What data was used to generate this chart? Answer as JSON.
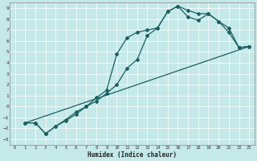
{
  "title": "",
  "xlabel": "Humidex (Indice chaleur)",
  "bg_color": "#c5e8e8",
  "line_color": "#1a6060",
  "grid_color": "#ffffff",
  "xlim": [
    -0.5,
    23.5
  ],
  "ylim": [
    -3.5,
    9.5
  ],
  "xticks": [
    0,
    1,
    2,
    3,
    4,
    5,
    6,
    7,
    8,
    9,
    10,
    11,
    12,
    13,
    14,
    15,
    16,
    17,
    18,
    19,
    20,
    21,
    22,
    23
  ],
  "yticks": [
    -3,
    -2,
    -1,
    0,
    1,
    2,
    3,
    4,
    5,
    6,
    7,
    8,
    9
  ],
  "line1_x": [
    1,
    2,
    3,
    4,
    5,
    6,
    7,
    8,
    9,
    10,
    11,
    12,
    13,
    14,
    15,
    16,
    17,
    18,
    19,
    20,
    21,
    22,
    23
  ],
  "line1_y": [
    -1.5,
    -1.5,
    -2.5,
    -1.8,
    -1.2,
    -0.5,
    0.0,
    0.5,
    1.2,
    2.0,
    3.5,
    4.3,
    6.5,
    7.2,
    8.7,
    9.2,
    8.8,
    8.5,
    8.5,
    7.8,
    6.8,
    5.4,
    5.5
  ],
  "line2_x": [
    1,
    2,
    3,
    4,
    5,
    6,
    7,
    8,
    9,
    10,
    11,
    12,
    13,
    14,
    15,
    16,
    17,
    18,
    19,
    20,
    21,
    22,
    23
  ],
  "line2_y": [
    -1.5,
    -1.5,
    -2.5,
    -1.8,
    -1.3,
    -0.7,
    0.0,
    0.8,
    1.5,
    4.8,
    6.3,
    6.8,
    7.0,
    7.2,
    8.7,
    9.2,
    8.2,
    7.9,
    8.5,
    7.8,
    7.2,
    5.4,
    5.5
  ],
  "line3_x": [
    1,
    23
  ],
  "line3_y": [
    -1.5,
    5.5
  ],
  "marker": "D",
  "marker_size": 2.0,
  "lw": 0.9
}
